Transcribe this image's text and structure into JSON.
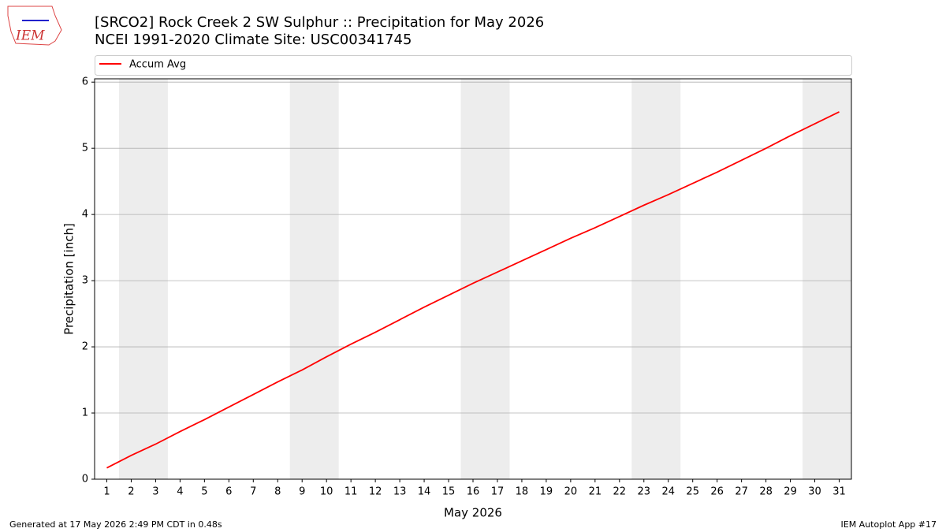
{
  "logo_text": "IEM",
  "chart_data": {
    "type": "line",
    "title": "[SRCO2] Rock Creek 2 SW Sulphur :: Precipitation for May 2026",
    "subtitle": "NCEI 1991-2020 Climate Site: USC00341745",
    "x_label": "May 2026",
    "y_label": "Precipitation [inch]",
    "x": [
      1,
      2,
      3,
      4,
      5,
      6,
      7,
      8,
      9,
      10,
      11,
      12,
      13,
      14,
      15,
      16,
      17,
      18,
      19,
      20,
      21,
      22,
      23,
      24,
      25,
      26,
      27,
      28,
      29,
      30,
      31
    ],
    "series": [
      {
        "name": "Accum Avg",
        "color": "#ff0000",
        "values": [
          0.17,
          0.36,
          0.53,
          0.72,
          0.9,
          1.09,
          1.28,
          1.47,
          1.65,
          1.85,
          2.04,
          2.22,
          2.41,
          2.6,
          2.78,
          2.96,
          3.13,
          3.3,
          3.47,
          3.64,
          3.8,
          3.97,
          4.14,
          4.3,
          4.47,
          4.64,
          4.82,
          5.0,
          5.19,
          5.37,
          5.55
        ]
      }
    ],
    "shaded_spans": [
      [
        1.5,
        3.5
      ],
      [
        8.5,
        10.5
      ],
      [
        15.5,
        17.5
      ],
      [
        22.5,
        24.5
      ],
      [
        29.5,
        31.5
      ]
    ],
    "xlim": [
      0.5,
      31.5
    ],
    "ylim": [
      0,
      6.05
    ],
    "xticks": [
      1,
      2,
      3,
      4,
      5,
      6,
      7,
      8,
      9,
      10,
      11,
      12,
      13,
      14,
      15,
      16,
      17,
      18,
      19,
      20,
      21,
      22,
      23,
      24,
      25,
      26,
      27,
      28,
      29,
      30,
      31
    ],
    "yticks": [
      0,
      1,
      2,
      3,
      4,
      5,
      6
    ],
    "grid": true,
    "legend": "top"
  },
  "footer": {
    "left": "Generated at 17 May 2026 2:49 PM CDT in 0.48s",
    "right": "IEM Autoplot App #17"
  }
}
